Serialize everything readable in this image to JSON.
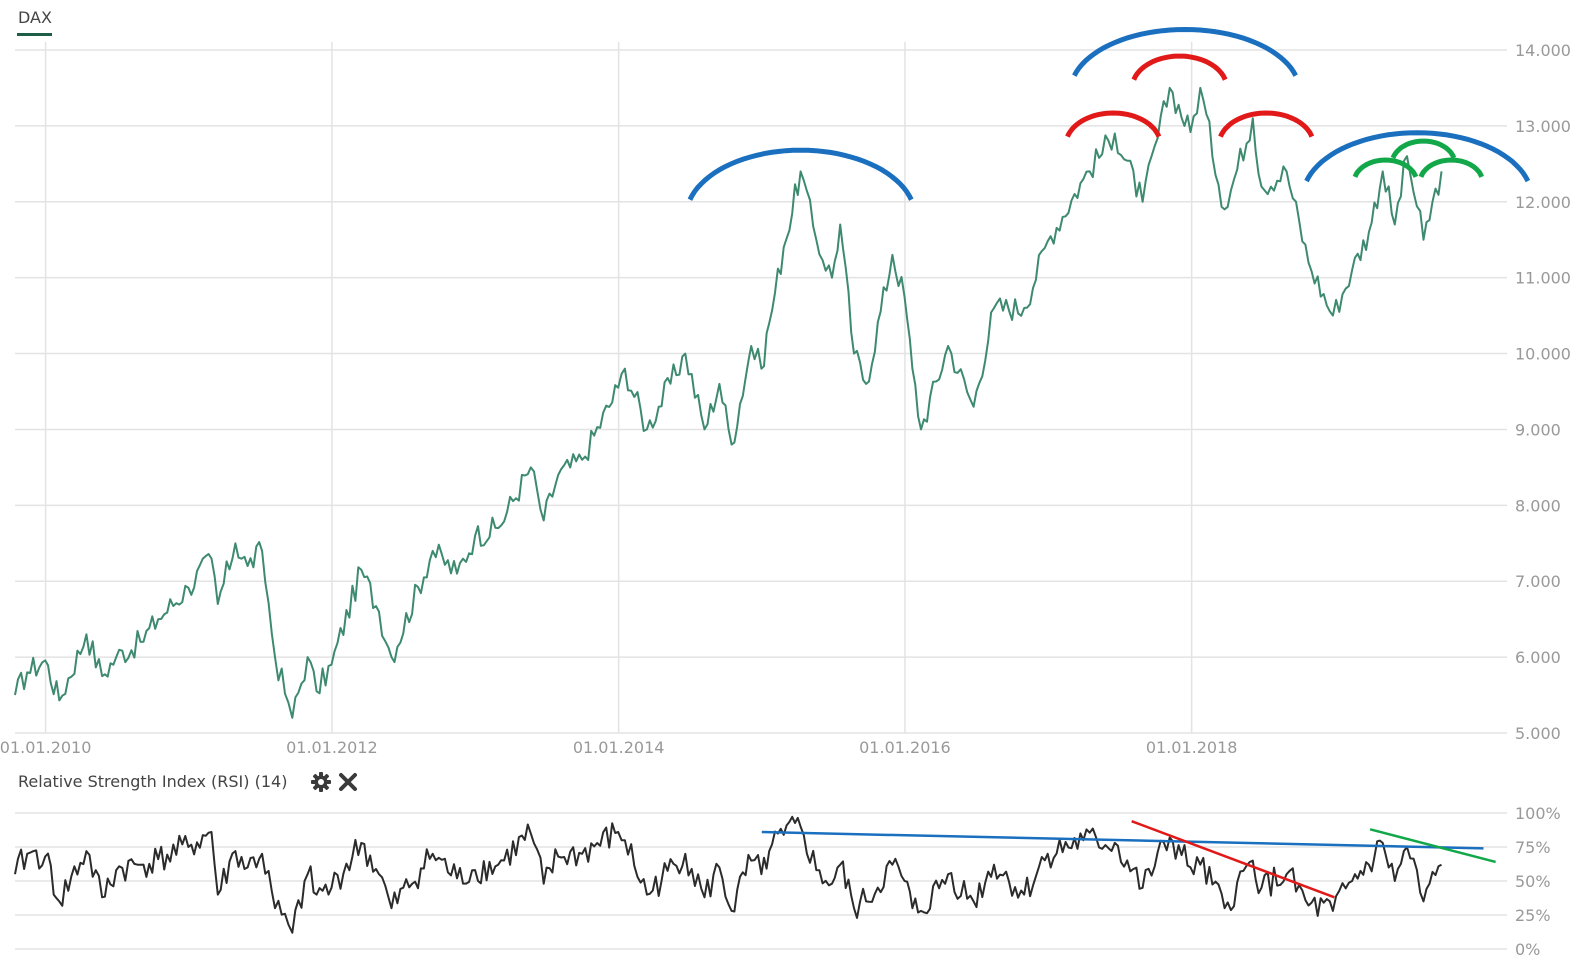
{
  "main_title": "DAX",
  "rsi_title": "Relative Strength Index (RSI) (14)",
  "colors": {
    "price_line": "#3d8a6f",
    "rsi_line": "#2b2b2b",
    "grid": "#e3e3e3",
    "tick_text": "#999999",
    "title_underline": "#1e5e46",
    "arc_blue": "#1a6fbf",
    "arc_red": "#e11919",
    "arc_green": "#12a84a",
    "trend_blue": "#1a6fbf",
    "trend_red": "#e11919",
    "trend_green": "#12a84a"
  },
  "icons": [
    "gear-icon",
    "close-icon"
  ],
  "chart_data": [
    {
      "type": "line",
      "title": "DAX",
      "xlabel": "",
      "ylabel": "",
      "x_ticks": [
        "01.01.2010",
        "01.01.2012",
        "01.01.2014",
        "01.01.2016",
        "01.01.2018"
      ],
      "y_ticks": [
        "5.000",
        "6.000",
        "7.000",
        "8.000",
        "9.000",
        "10.000",
        "11.000",
        "12.000",
        "13.000",
        "14.000"
      ],
      "ylim": [
        5000,
        14000
      ],
      "xlim": [
        "2009-10-15",
        "2020-03-15"
      ],
      "grid": true,
      "series": [
        {
          "x": [
            "2009-10-15",
            "2009-11-15",
            "2009-12-31",
            "2010-02-05",
            "2010-04-15",
            "2010-05-25",
            "2010-06-30",
            "2010-08-31",
            "2010-10-15",
            "2010-12-31",
            "2011-02-28",
            "2011-03-16",
            "2011-04-30",
            "2011-05-31",
            "2011-07-07",
            "2011-08-09",
            "2011-09-12",
            "2011-09-22",
            "2011-10-31",
            "2011-11-23",
            "2011-12-31",
            "2012-03-16",
            "2012-04-30",
            "2012-06-01",
            "2012-09-14",
            "2012-11-15",
            "2012-12-31",
            "2013-02-28",
            "2013-05-22",
            "2013-06-24",
            "2013-07-31",
            "2013-09-30",
            "2013-12-31",
            "2014-01-17",
            "2014-03-14",
            "2014-06-20",
            "2014-08-08",
            "2014-09-15",
            "2014-10-16",
            "2014-12-05",
            "2014-12-31",
            "2015-01-20",
            "2015-02-26",
            "2015-04-10",
            "2015-05-20",
            "2015-06-29",
            "2015-07-20",
            "2015-08-24",
            "2015-09-24",
            "2015-11-30",
            "2015-12-31",
            "2016-01-20",
            "2016-02-11",
            "2016-04-20",
            "2016-06-24",
            "2016-08-15",
            "2016-10-31",
            "2016-12-30",
            "2017-03-31",
            "2017-06-19",
            "2017-08-29",
            "2017-11-06",
            "2017-12-29",
            "2018-01-23",
            "2018-03-26",
            "2018-06-06",
            "2018-06-28",
            "2018-08-31",
            "2018-10-26",
            "2018-12-27",
            "2019-02-14",
            "2019-03-29",
            "2019-05-03",
            "2019-06-03",
            "2019-07-04",
            "2019-08-15",
            "2019-09-30"
          ],
          "y": [
            5500,
            5800,
            5957,
            5430,
            6300,
            5750,
            6000,
            6200,
            6500,
            6914,
            7300,
            6700,
            7500,
            7200,
            7400,
            6000,
            5400,
            5200,
            6000,
            5550,
            5900,
            7150,
            6600,
            6000,
            7400,
            7100,
            7600,
            7700,
            8500,
            7800,
            8400,
            8600,
            9550,
            9800,
            9000,
            10000,
            9000,
            9600,
            8800,
            10100,
            9800,
            10400,
            11400,
            12400,
            11500,
            11000,
            11700,
            10000,
            9600,
            11300,
            10743,
            9800,
            9000,
            10100,
            9300,
            10600,
            10600,
            11481,
            12300,
            12900,
            12000,
            13500,
            12918,
            13500,
            11900,
            13100,
            12200,
            12400,
            11200,
            10500,
            11100,
            11600,
            12400,
            11700,
            12600,
            11500,
            12400
          ]
        }
      ]
    },
    {
      "type": "line",
      "title": "Relative Strength Index (RSI) (14)",
      "xlabel": "",
      "ylabel": "",
      "y_ticks": [
        "0%",
        "25%",
        "50%",
        "75%",
        "100%"
      ],
      "ylim": [
        0,
        100
      ],
      "grid": true,
      "series": [
        {
          "x": [
            "2009-10-15",
            "2009-11-15",
            "2009-12-31",
            "2010-02-05",
            "2010-04-15",
            "2010-05-25",
            "2010-06-30",
            "2010-08-31",
            "2010-10-15",
            "2010-12-31",
            "2011-02-28",
            "2011-03-16",
            "2011-04-30",
            "2011-05-31",
            "2011-07-07",
            "2011-08-09",
            "2011-09-12",
            "2011-09-22",
            "2011-10-31",
            "2011-11-23",
            "2011-12-31",
            "2012-03-16",
            "2012-04-30",
            "2012-06-01",
            "2012-09-14",
            "2012-11-15",
            "2012-12-31",
            "2013-02-28",
            "2013-05-22",
            "2013-06-24",
            "2013-07-31",
            "2013-09-30",
            "2013-12-31",
            "2014-01-17",
            "2014-03-14",
            "2014-06-20",
            "2014-08-08",
            "2014-09-15",
            "2014-10-16",
            "2014-12-05",
            "2014-12-31",
            "2015-01-20",
            "2015-02-26",
            "2015-04-10",
            "2015-05-20",
            "2015-06-29",
            "2015-07-20",
            "2015-08-24",
            "2015-09-24",
            "2015-11-30",
            "2015-12-31",
            "2016-01-20",
            "2016-02-11",
            "2016-04-20",
            "2016-06-24",
            "2016-08-15",
            "2016-10-31",
            "2016-12-30",
            "2017-03-31",
            "2017-06-19",
            "2017-08-29",
            "2017-11-06",
            "2017-12-29",
            "2018-01-23",
            "2018-03-26",
            "2018-06-06",
            "2018-06-28",
            "2018-08-31",
            "2018-10-26",
            "2018-12-27",
            "2019-02-14",
            "2019-03-29",
            "2019-05-03",
            "2019-06-03",
            "2019-07-04",
            "2019-08-15",
            "2019-09-30"
          ],
          "y": [
            55,
            70,
            68,
            35,
            72,
            38,
            58,
            62,
            66,
            75,
            86,
            40,
            72,
            60,
            70,
            30,
            18,
            12,
            55,
            40,
            45,
            78,
            55,
            30,
            70,
            52,
            58,
            62,
            85,
            48,
            68,
            70,
            86,
            80,
            40,
            70,
            38,
            60,
            28,
            65,
            55,
            72,
            84,
            90,
            58,
            48,
            62,
            30,
            35,
            62,
            50,
            30,
            28,
            55,
            35,
            62,
            40,
            70,
            80,
            78,
            45,
            82,
            60,
            62,
            30,
            65,
            45,
            55,
            32,
            28,
            50,
            62,
            78,
            50,
            75,
            35,
            62
          ]
        }
      ]
    }
  ],
  "annotations": {
    "arcs": [
      {
        "color": "blue",
        "center": [
          "2015-04-10",
          11800
        ],
        "rx_years": 0.8,
        "ry": 880
      },
      {
        "color": "blue",
        "center": [
          "2017-12-15",
          13450
        ],
        "rx_years": 0.8,
        "ry": 820
      },
      {
        "color": "red",
        "center": [
          "2017-06-15",
          12750
        ],
        "rx_years": 0.33,
        "ry": 420
      },
      {
        "color": "red",
        "center": [
          "2017-12-01",
          13500
        ],
        "rx_years": 0.33,
        "ry": 420
      },
      {
        "color": "red",
        "center": [
          "2018-07-10",
          12750
        ],
        "rx_years": 0.33,
        "ry": 420
      },
      {
        "color": "blue",
        "center": [
          "2019-07-30",
          12050
        ],
        "rx_years": 0.8,
        "ry": 860
      },
      {
        "color": "green",
        "center": [
          "2019-05-10",
          12250
        ],
        "rx_years": 0.22,
        "ry": 300
      },
      {
        "color": "green",
        "center": [
          "2019-08-15",
          12500
        ],
        "rx_years": 0.22,
        "ry": 300
      },
      {
        "color": "green",
        "center": [
          "2019-10-25",
          12250
        ],
        "rx_years": 0.22,
        "ry": 300
      }
    ],
    "rsi_trendlines": [
      {
        "color": "blue",
        "from": [
          "2015-01-01",
          86
        ],
        "to": [
          "2020-01-15",
          74
        ]
      },
      {
        "color": "red",
        "from": [
          "2017-08-01",
          94
        ],
        "to": [
          "2018-12-31",
          38
        ]
      },
      {
        "color": "green",
        "from": [
          "2019-04-01",
          88
        ],
        "to": [
          "2020-02-15",
          64
        ]
      }
    ]
  }
}
